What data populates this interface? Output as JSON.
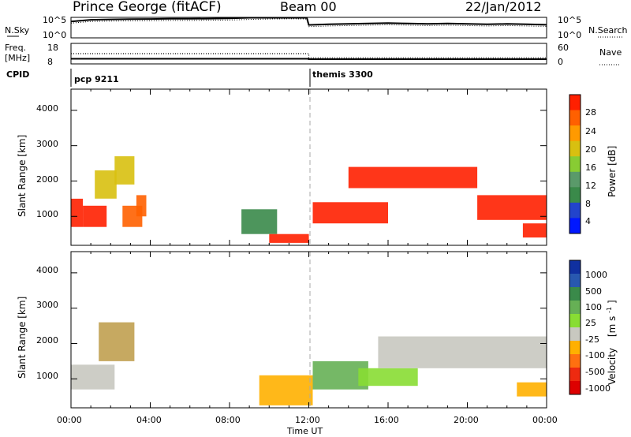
{
  "header": {
    "station": "Prince George (fitACF)",
    "beam": "Beam 00",
    "date": "22/Jan/2012"
  },
  "noise_panel": {
    "left_label": "N.Sky",
    "left_ticks": [
      "10^5",
      "10^0"
    ],
    "right_label": "N.Search",
    "right_ticks": [
      "10^5",
      "10^0"
    ]
  },
  "freq_panel": {
    "left_label_1": "Freq.",
    "left_label_2": "[MHz]",
    "left_ticks": [
      "18",
      "8"
    ],
    "right_label": "Nave",
    "right_ticks": [
      "60",
      "0"
    ]
  },
  "cpid_panel": {
    "label": "CPID",
    "segments": [
      {
        "name": "pcp 9211",
        "start_hour": 0
      },
      {
        "name": "themis 3300",
        "start_hour": 12
      }
    ]
  },
  "x_axis": {
    "label": "Time UT",
    "ticks": [
      "00:00",
      "04:00",
      "08:00",
      "12:00",
      "16:00",
      "20:00",
      "00:00"
    ]
  },
  "power_panel": {
    "ylabel": "Slant Range [km]",
    "yticks": [
      "4000",
      "3000",
      "2000",
      "1000"
    ],
    "colorbar_label": "Power [dB]",
    "colorbar_ticks": [
      "28",
      "24",
      "20",
      "16",
      "12",
      "8",
      "4"
    ],
    "colors": [
      "#0018ff",
      "#2244cc",
      "#3a8a4a",
      "#5a9a6a",
      "#88cc33",
      "#d8c010",
      "#ff9a00",
      "#ff6000",
      "#ff2000"
    ]
  },
  "velocity_panel": {
    "ylabel": "Slant Range [km]",
    "yticks": [
      "4000",
      "3000",
      "2000",
      "1000"
    ],
    "colorbar_label_1": "Velocity",
    "colorbar_label_2": "[m s",
    "colorbar_label_3": "-1",
    "colorbar_label_4": "]",
    "colorbar_ticks": [
      "1000",
      "500",
      "100",
      "25",
      "-25",
      "-100",
      "-500",
      "-1000"
    ],
    "colors": [
      "#1030a0",
      "#2858b0",
      "#3a8a4a",
      "#66b055",
      "#88dd33",
      "#c8c8c0",
      "#ffb000",
      "#ff7010",
      "#ee2a10",
      "#dd0000"
    ]
  },
  "chart_data": {
    "type": "heatmap",
    "title": "Prince George (fitACF)  Beam 00  22/Jan/2012",
    "xlabel": "Time UT",
    "ylabel": "Slant Range [km]",
    "xlim_hours": [
      0,
      24
    ],
    "ylim_km": [
      180,
      4600
    ],
    "noise_series_right_scale": {
      "name": "N.Search",
      "t": [
        0,
        1,
        2,
        3,
        4,
        5,
        6,
        7,
        8,
        9,
        10,
        11,
        11.9,
        12,
        13,
        14,
        15,
        16,
        17,
        18,
        19,
        20,
        21,
        22,
        23,
        24
      ],
      "v_frac": [
        0.72,
        0.8,
        0.82,
        0.83,
        0.84,
        0.85,
        0.85,
        0.86,
        0.87,
        0.9,
        0.92,
        0.93,
        0.92,
        0.55,
        0.58,
        0.6,
        0.62,
        0.64,
        0.62,
        0.6,
        0.62,
        0.6,
        0.58,
        0.6,
        0.58,
        0.56
      ]
    },
    "freq_series": {
      "name": "Freq.",
      "unit": "MHz",
      "t": [
        0,
        12,
        12,
        24
      ],
      "v": [
        10.5,
        10.5,
        10.3,
        10.3
      ]
    },
    "nave_series": {
      "name": "Nave",
      "t": [
        0,
        12,
        12,
        24
      ],
      "v": [
        30,
        30,
        18,
        18
      ]
    },
    "power_regions": [
      {
        "t0": 0.0,
        "t1": 0.6,
        "r0": 700,
        "r1": 1500,
        "level": 8
      },
      {
        "t0": 0.6,
        "t1": 1.8,
        "r0": 700,
        "r1": 1300,
        "level": 8
      },
      {
        "t0": 1.2,
        "t1": 2.3,
        "r0": 1500,
        "r1": 2300,
        "level": 5
      },
      {
        "t0": 2.2,
        "t1": 3.2,
        "r0": 1900,
        "r1": 2700,
        "level": 5
      },
      {
        "t0": 2.6,
        "t1": 3.6,
        "r0": 700,
        "r1": 1300,
        "level": 7
      },
      {
        "t0": 3.3,
        "t1": 3.8,
        "r0": 1000,
        "r1": 1600,
        "level": 7
      },
      {
        "t0": 8.6,
        "t1": 10.4,
        "r0": 500,
        "r1": 1200,
        "level": 2
      },
      {
        "t0": 10.0,
        "t1": 12.0,
        "r0": 250,
        "r1": 500,
        "level": 8
      },
      {
        "t0": 12.2,
        "t1": 16.0,
        "r0": 800,
        "r1": 1400,
        "level": 8
      },
      {
        "t0": 14.0,
        "t1": 20.5,
        "r0": 1800,
        "r1": 2400,
        "level": 8
      },
      {
        "t0": 20.5,
        "t1": 24.0,
        "r0": 900,
        "r1": 1600,
        "level": 8
      },
      {
        "t0": 22.8,
        "t1": 24.0,
        "r0": 400,
        "r1": 800,
        "level": 8
      }
    ],
    "velocity_regions": [
      {
        "t0": 0.0,
        "t1": 2.2,
        "r0": 700,
        "r1": 1400,
        "class": "-25..25"
      },
      {
        "t0": 1.4,
        "t1": 3.2,
        "r0": 1500,
        "r1": 2600,
        "class": "mixed"
      },
      {
        "t0": 9.5,
        "t1": 12.2,
        "r0": 250,
        "r1": 1100,
        "class": "-100..-500"
      },
      {
        "t0": 12.2,
        "t1": 15.0,
        "r0": 700,
        "r1": 1500,
        "class": "25..500"
      },
      {
        "t0": 14.5,
        "t1": 17.5,
        "r0": 800,
        "r1": 1300,
        "class": "100..500"
      },
      {
        "t0": 15.5,
        "t1": 24.0,
        "r0": 1300,
        "r1": 2200,
        "class": "-25..25"
      },
      {
        "t0": 22.5,
        "t1": 24.0,
        "r0": 500,
        "r1": 900,
        "class": "-100..-500"
      }
    ]
  }
}
